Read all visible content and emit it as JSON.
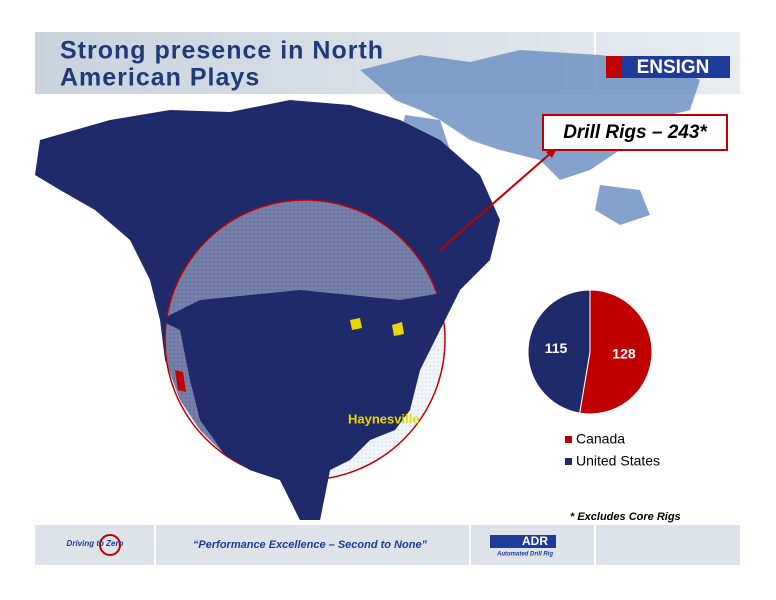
{
  "header": {
    "title_lines": [
      "Strong presence in North",
      "American Plays"
    ],
    "logo": "ENSIGN"
  },
  "callout": "Drill Rigs – 243*",
  "map_labels": [
    "Haynesville"
  ],
  "chart_data": {
    "type": "pie",
    "categories": [
      "Canada",
      "United States"
    ],
    "values": [
      128,
      115
    ],
    "colors": [
      "#c00000",
      "#1f2a6b"
    ]
  },
  "footnote": "* Excludes Core Rigs",
  "footer": {
    "left_logo": "Driving to Zero",
    "tagline": "“Performance Excellence – Second to None”",
    "right_logo": "ADR",
    "right_logo_sub": "Automated Drill Rig"
  }
}
